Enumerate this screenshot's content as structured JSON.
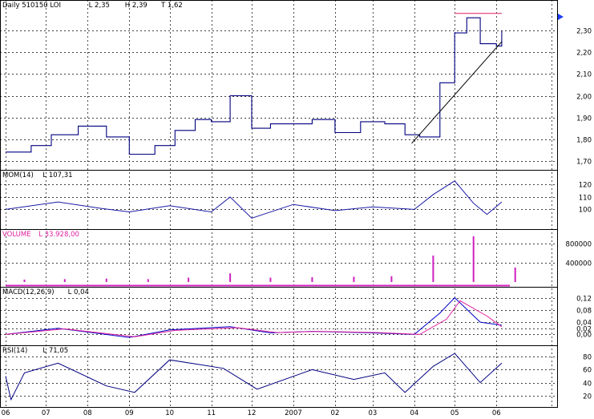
{
  "chart_data": [
    {
      "type": "line",
      "title": "Daily  510150  LOI",
      "stats": [
        "L 2,35",
        "H 2,39",
        "T 1,62"
      ],
      "ylim": [
        1.68,
        2.42
      ],
      "yticks": [
        "1,70",
        "1,80",
        "1,90",
        "2,00",
        "2,10",
        "2,20",
        "2,30"
      ],
      "grid": true,
      "series": [
        {
          "x": [
            "2006-06-01",
            "2006-06-20",
            "2006-07-05",
            "2006-07-25",
            "2006-08-15",
            "2006-09-01",
            "2006-09-20",
            "2006-10-05",
            "2006-10-20",
            "2006-11-01",
            "2006-11-15",
            "2006-12-01",
            "2006-12-15",
            "2007-01-15",
            "2007-02-01",
            "2007-02-20",
            "2007-03-10",
            "2007-03-25",
            "2007-04-05",
            "2007-04-20",
            "2007-05-01",
            "2007-05-10",
            "2007-05-20",
            "2007-06-01",
            "2007-06-05"
          ],
          "values": [
            1.74,
            1.77,
            1.82,
            1.86,
            1.81,
            1.73,
            1.77,
            1.84,
            1.89,
            1.88,
            2.0,
            1.85,
            1.87,
            1.89,
            1.83,
            1.88,
            1.87,
            1.82,
            1.81,
            2.06,
            2.29,
            2.36,
            2.24,
            2.23,
            2.3
          ]
        }
      ],
      "annotations": [
        {
          "type": "resistance-line",
          "color": "#e0205a",
          "from": [
            "2007-05-01",
            2.38
          ],
          "to": [
            "2007-06-05",
            2.38
          ]
        },
        {
          "type": "trend-line",
          "color": "#000000",
          "from": [
            "2007-03-30",
            1.78
          ],
          "to": [
            "2007-06-05",
            2.25
          ]
        }
      ]
    },
    {
      "type": "line",
      "title": "MOM(14)",
      "stats": [
        "L 107,31"
      ],
      "ylim": [
        88,
        128
      ],
      "yticks": [
        "100",
        "110",
        "120"
      ],
      "series": [
        {
          "x": [
            "2006-06-01",
            "2006-07-10",
            "2006-08-10",
            "2006-09-01",
            "2006-10-01",
            "2006-11-01",
            "2006-11-15",
            "2006-12-01",
            "2007-01-01",
            "2007-02-01",
            "2007-03-01",
            "2007-04-01",
            "2007-04-15",
            "2007-05-01",
            "2007-05-15",
            "2007-05-25",
            "2007-06-05"
          ],
          "values": [
            100,
            106,
            101,
            98,
            103,
            98,
            110,
            93,
            104,
            99,
            102,
            100,
            112,
            123,
            105,
            96,
            106
          ]
        }
      ]
    },
    {
      "type": "bar",
      "title": "VOLUME",
      "stats": [
        "L 33.928,00"
      ],
      "ylim": [
        0,
        1000000
      ],
      "yticks": [
        "400000",
        "800000"
      ],
      "categories": [
        "2006-06",
        "2006-07",
        "2006-08",
        "2006-09",
        "2006-10",
        "2006-11",
        "2006-12",
        "2007-01",
        "2007-02",
        "2007-03",
        "2007-04",
        "2007-05",
        "2007-06"
      ],
      "values": [
        50000,
        60000,
        70000,
        60000,
        90000,
        180000,
        90000,
        100000,
        110000,
        120000,
        550000,
        950000,
        300000
      ]
    },
    {
      "type": "line",
      "title": "MACD(12,26,9)",
      "stats": [
        "L 0,04"
      ],
      "ylim": [
        -0.02,
        0.14
      ],
      "yticks": [
        "0,00",
        "0,02",
        "0,04",
        "0,08",
        "0,12"
      ],
      "series": [
        {
          "x": [
            "2006-06-01",
            "2006-07-10",
            "2006-09-01",
            "2006-10-01",
            "2006-11-15",
            "2006-12-15",
            "2007-01-15",
            "2007-03-01",
            "2007-04-01",
            "2007-04-20",
            "2007-05-01",
            "2007-05-20",
            "2007-06-05"
          ],
          "values": [
            0.0,
            0.02,
            -0.01,
            0.015,
            0.025,
            0.005,
            0.01,
            0.005,
            0.0,
            0.07,
            0.12,
            0.04,
            0.03
          ]
        },
        {
          "x": [
            "2006-06-01",
            "2006-07-15",
            "2006-09-05",
            "2006-10-05",
            "2006-11-20",
            "2006-12-20",
            "2007-01-20",
            "2007-03-05",
            "2007-04-05",
            "2007-04-25",
            "2007-05-05",
            "2007-05-25",
            "2007-06-05"
          ],
          "values": [
            0.0,
            0.018,
            -0.008,
            0.013,
            0.022,
            0.006,
            0.01,
            0.006,
            0.0,
            0.05,
            0.11,
            0.06,
            0.025
          ]
        }
      ]
    },
    {
      "type": "line",
      "title": "RSI(14)",
      "stats": [
        "L 71,05"
      ],
      "ylim": [
        10,
        90
      ],
      "yticks": [
        "20",
        "40",
        "60",
        "80"
      ],
      "series": [
        {
          "x": [
            "2006-06-01",
            "2006-06-05",
            "2006-06-15",
            "2006-07-10",
            "2006-08-15",
            "2006-09-05",
            "2006-10-01",
            "2006-11-10",
            "2006-12-05",
            "2007-01-15",
            "2007-02-15",
            "2007-03-10",
            "2007-03-25",
            "2007-04-15",
            "2007-05-01",
            "2007-05-20",
            "2007-06-05"
          ],
          "values": [
            50,
            14,
            55,
            70,
            35,
            25,
            75,
            62,
            30,
            60,
            45,
            55,
            25,
            65,
            85,
            40,
            70
          ]
        }
      ]
    },
    {
      "type": "line",
      "title": "time-axis",
      "categories": [
        "06",
        "07",
        "08",
        "09",
        "10",
        "11",
        "12",
        "2007",
        "02",
        "03",
        "04",
        "05",
        "06"
      ]
    }
  ],
  "colors": {
    "price": "#000080",
    "mom": "#1a1aa6",
    "volume": "#d020c0",
    "macd": "#0000c8",
    "signal": "#e020a0",
    "rsi": "#000080",
    "resistance": "#e0205a",
    "trend": "#000000",
    "panel_label": "#e020a0",
    "scroll_arrow": "#2040ff"
  }
}
